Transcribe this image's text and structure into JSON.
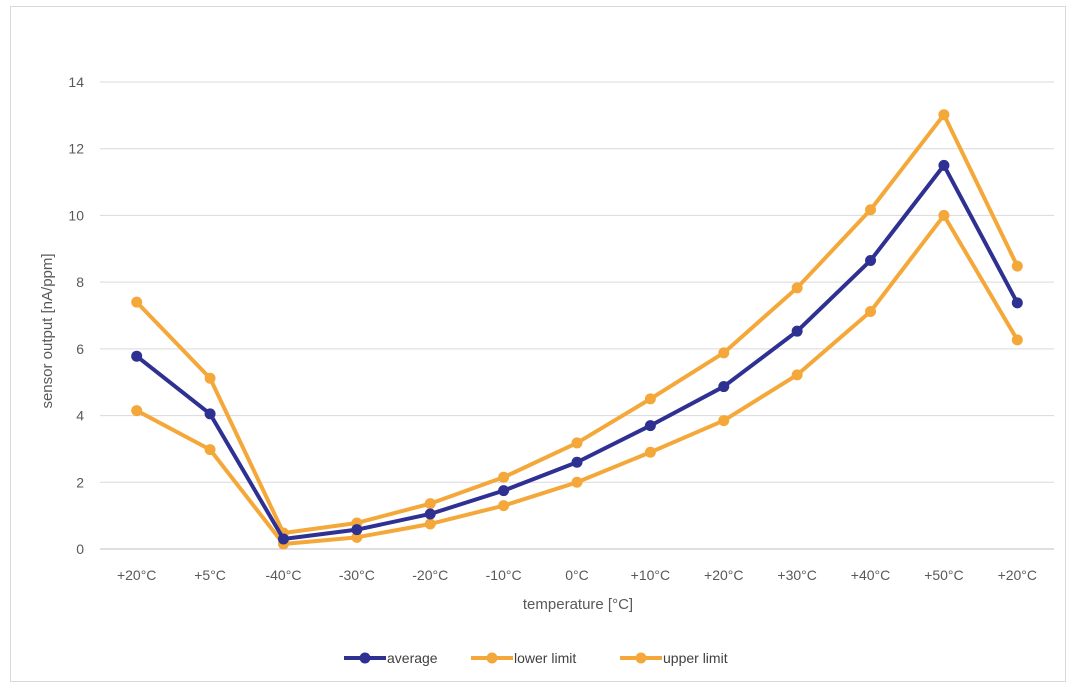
{
  "chart_data": {
    "type": "line",
    "title": "",
    "xlabel": "temperature [°C]",
    "ylabel": "sensor output [nA/ppm]",
    "ylim": [
      0,
      14
    ],
    "yticks": [
      0,
      2,
      4,
      6,
      8,
      10,
      12,
      14
    ],
    "grid": true,
    "legend_position": "bottom",
    "categories": [
      "+20°C",
      "+5°C",
      "-40°C",
      "-30°C",
      "-20°C",
      "-10°C",
      "0°C",
      "+10°C",
      "+20°C",
      "+30°C",
      "+40°C",
      "+50°C",
      "+20°C"
    ],
    "series": [
      {
        "name": "average",
        "color": "#2e3192",
        "values": [
          5.78,
          4.05,
          0.3,
          0.58,
          1.05,
          1.75,
          2.6,
          3.7,
          4.87,
          6.53,
          8.65,
          11.5,
          7.38
        ]
      },
      {
        "name": "lower limit",
        "color": "#f5a83a",
        "values": [
          4.15,
          2.98,
          0.15,
          0.35,
          0.75,
          1.3,
          2.0,
          2.9,
          3.85,
          5.22,
          7.12,
          10.0,
          6.27
        ]
      },
      {
        "name": "upper limit",
        "color": "#f5a83a",
        "values": [
          7.4,
          5.12,
          0.48,
          0.78,
          1.36,
          2.15,
          3.18,
          4.5,
          5.88,
          7.83,
          10.17,
          13.02,
          8.48
        ]
      }
    ]
  }
}
